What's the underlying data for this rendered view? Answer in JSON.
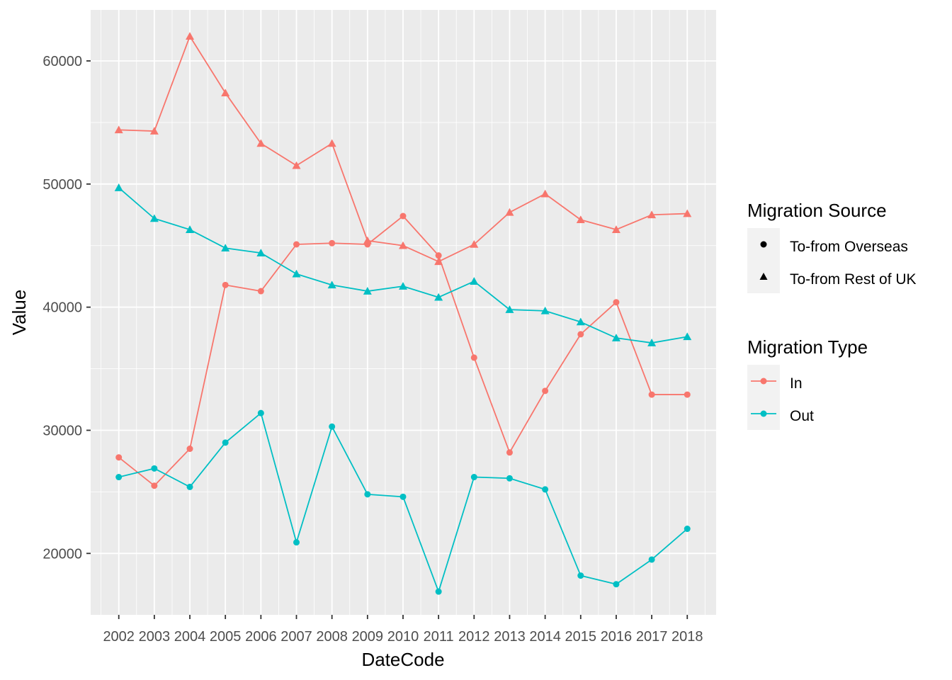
{
  "chart_data": {
    "type": "line",
    "xlabel": "DateCode",
    "ylabel": "Value",
    "categories": [
      "2002",
      "2003",
      "2004",
      "2005",
      "2006",
      "2007",
      "2008",
      "2009",
      "2010",
      "2011",
      "2012",
      "2013",
      "2014",
      "2015",
      "2016",
      "2017",
      "2018"
    ],
    "yticks": [
      20000,
      30000,
      40000,
      50000,
      60000
    ],
    "ylim": [
      15000,
      63500
    ],
    "grid": true,
    "legend_position": "right",
    "legends": {
      "shape": {
        "title": "Migration Source",
        "entries": [
          {
            "label": "To-from Overseas",
            "shape": "circle"
          },
          {
            "label": "To-from Rest of UK",
            "shape": "triangle"
          }
        ]
      },
      "color": {
        "title": "Migration Type",
        "entries": [
          {
            "label": "In",
            "color": "#F8766D"
          },
          {
            "label": "Out",
            "color": "#00BFC4"
          }
        ]
      }
    },
    "series": [
      {
        "type": "In",
        "source": "To-from Overseas",
        "color": "#F8766D",
        "shape": "circle",
        "values": [
          27800,
          25500,
          28500,
          41800,
          41300,
          45100,
          45200,
          45100,
          47400,
          44200,
          35900,
          28200,
          33200,
          37800,
          40400,
          32900,
          32900
        ]
      },
      {
        "type": "In",
        "source": "To-from Rest of UK",
        "color": "#F8766D",
        "shape": "triangle",
        "values": [
          54400,
          54300,
          62000,
          57400,
          53300,
          51500,
          53300,
          45400,
          45000,
          43700,
          45100,
          47700,
          49200,
          47100,
          46300,
          47500,
          47600
        ]
      },
      {
        "type": "Out",
        "source": "To-from Overseas",
        "color": "#00BFC4",
        "shape": "circle",
        "values": [
          26200,
          26900,
          25400,
          29000,
          31400,
          20900,
          30300,
          24800,
          24600,
          16900,
          26200,
          26100,
          25200,
          18200,
          17500,
          19500,
          22000
        ]
      },
      {
        "type": "Out",
        "source": "To-from Rest of UK",
        "color": "#00BFC4",
        "shape": "triangle",
        "values": [
          49700,
          47200,
          46300,
          44800,
          44400,
          42700,
          41800,
          41300,
          41700,
          40800,
          42100,
          39800,
          39700,
          38800,
          37500,
          37100,
          37600
        ]
      }
    ]
  }
}
